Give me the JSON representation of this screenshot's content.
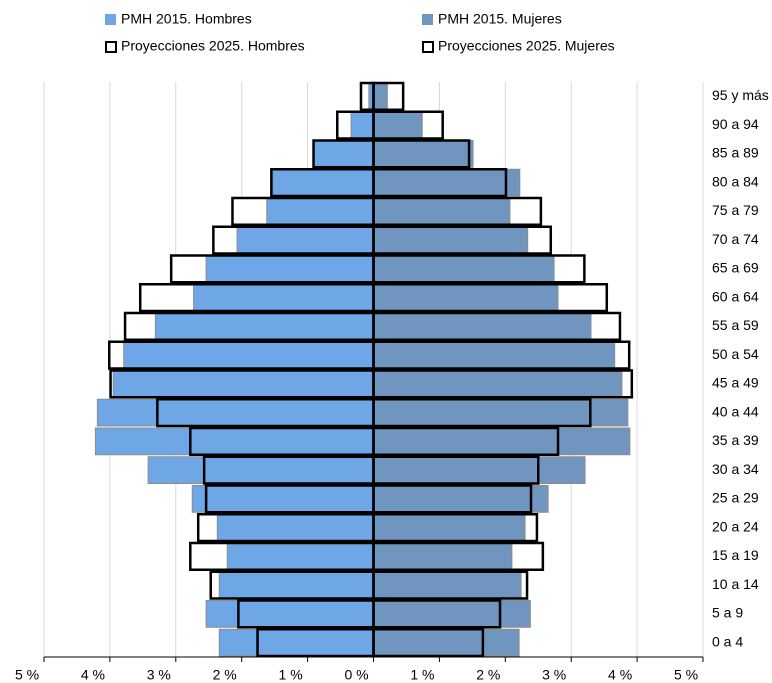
{
  "chart_data": {
    "type": "pyramid",
    "categories": [
      "0 a 4",
      "5 a 9",
      "10 a 14",
      "15 a 19",
      "20 a 24",
      "25 a 29",
      "30 a 34",
      "35 a 39",
      "40 a 44",
      "45 a 49",
      "50 a 54",
      "55 a 59",
      "60 a 64",
      "65 a 69",
      "70 a 74",
      "75 a 79",
      "80 a 84",
      "85 a 89",
      "90 a 94",
      "95 y más"
    ],
    "series": [
      {
        "name": "PMH 2015. Hombres",
        "color": "#6ea6e6",
        "style": "filled",
        "values": [
          -2.34,
          -2.54,
          -2.34,
          -2.22,
          -2.37,
          -2.75,
          -3.42,
          -4.22,
          -4.19,
          -3.95,
          -3.79,
          -3.31,
          -2.73,
          -2.54,
          -2.07,
          -1.62,
          -1.53,
          -0.91,
          -0.34,
          -0.07
        ]
      },
      {
        "name": "PMH 2015. Mujeres",
        "color": "#7096c0",
        "style": "filled",
        "values": [
          2.21,
          2.38,
          2.24,
          2.1,
          2.3,
          2.65,
          3.21,
          3.89,
          3.86,
          3.77,
          3.66,
          3.3,
          2.8,
          2.74,
          2.34,
          2.07,
          2.22,
          1.51,
          0.74,
          0.21
        ]
      },
      {
        "name": "Proyecciones 2025. Hombres",
        "color": "#000000",
        "style": "outline",
        "values": [
          -1.76,
          -2.05,
          -2.47,
          -2.78,
          -2.66,
          -2.54,
          -2.57,
          -2.78,
          -3.28,
          -3.99,
          -4.01,
          -3.77,
          -3.54,
          -3.07,
          -2.43,
          -2.14,
          -1.55,
          -0.91,
          -0.55,
          -0.19
        ]
      },
      {
        "name": "Proyecciones 2025. Mujeres",
        "color": "#000000",
        "style": "outline",
        "values": [
          1.66,
          1.92,
          2.33,
          2.57,
          2.48,
          2.39,
          2.5,
          2.8,
          3.29,
          3.92,
          3.88,
          3.74,
          3.54,
          3.2,
          2.69,
          2.54,
          2.01,
          1.45,
          1.05,
          0.45
        ]
      }
    ],
    "xlim": [
      -5,
      5
    ],
    "xticks": [
      {
        "value": -5,
        "label": "5 %"
      },
      {
        "value": -4,
        "label": "4 %"
      },
      {
        "value": -3,
        "label": "3 %"
      },
      {
        "value": -2,
        "label": "2 %"
      },
      {
        "value": -1,
        "label": "1 %"
      },
      {
        "value": 0,
        "label": "0 %"
      },
      {
        "value": 1,
        "label": "1 %"
      },
      {
        "value": 2,
        "label": "2 %"
      },
      {
        "value": 3,
        "label": "3 %"
      },
      {
        "value": 4,
        "label": "4 %"
      },
      {
        "value": 5,
        "label": "5 %"
      }
    ],
    "grid": true
  }
}
